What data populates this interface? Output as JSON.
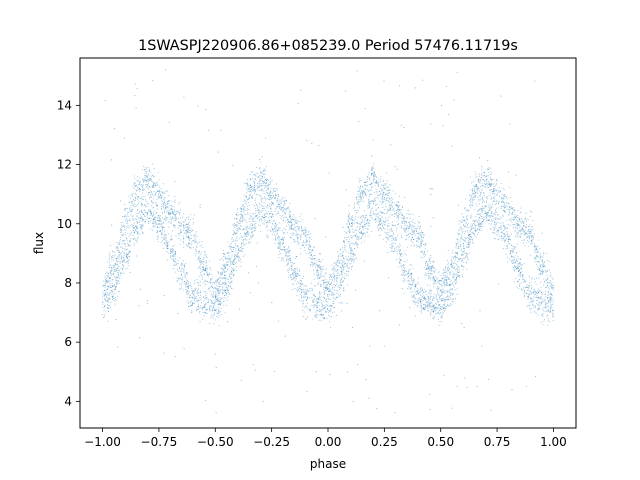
{
  "chart_data": {
    "type": "scatter",
    "title": "1SWASPJ220906.86+085239.0 Period 57476.11719s",
    "xlabel": "phase",
    "ylabel": "flux",
    "xlim": [
      -1.1,
      1.1
    ],
    "ylim": [
      3.1,
      15.6
    ],
    "xticks": [
      -1.0,
      -0.75,
      -0.5,
      -0.25,
      0.0,
      0.25,
      0.5,
      0.75,
      1.0
    ],
    "xtick_labels": [
      "−1.00",
      "−0.75",
      "−0.50",
      "−0.25",
      "0.00",
      "0.25",
      "0.50",
      "0.75",
      "1.00"
    ],
    "yticks": [
      4,
      6,
      8,
      10,
      12,
      14
    ],
    "ytick_labels": [
      "4",
      "6",
      "8",
      "10",
      "12",
      "14"
    ],
    "grid": false,
    "legend": "none",
    "point_color": "#1f77b4",
    "series": [
      {
        "name": "",
        "x_range": [
          -1.0,
          1.0
        ],
        "pattern": "folded light curve, repeating every 0.5 in phase (two cycles per unit phase)",
        "profile_phase": [
          0.0,
          0.05,
          0.1,
          0.15,
          0.2,
          0.25,
          0.3,
          0.35,
          0.4,
          0.45,
          0.5
        ],
        "profile_upper": [
          7.8,
          8.6,
          10.0,
          11.1,
          11.5,
          11.0,
          10.5,
          9.9,
          9.6,
          8.5,
          7.8
        ],
        "profile_lower": [
          7.2,
          7.8,
          8.9,
          9.9,
          10.4,
          10.0,
          9.3,
          8.3,
          7.5,
          7.3,
          7.2
        ],
        "outlier_range": [
          3.6,
          15.3
        ]
      }
    ]
  }
}
